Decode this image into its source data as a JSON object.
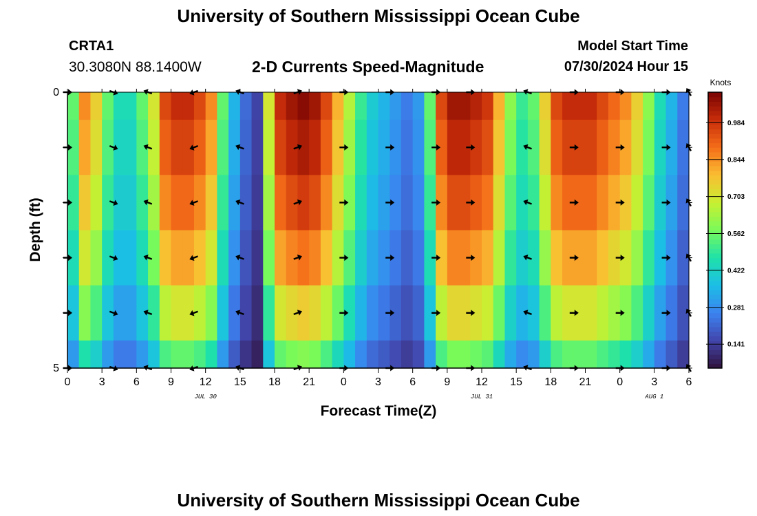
{
  "page": {
    "title_top": "University of Southern Mississippi Ocean Cube",
    "title_bottom": "University of Southern Mississippi Ocean Cube",
    "station": "CRTA1",
    "coords": "30.3080N  88.1400W",
    "subtitle": "2-D Currents Speed-Magnitude",
    "model_start_label": "Model Start Time",
    "model_start_value": "07/30/2024 Hour 15"
  },
  "chart_data": {
    "type": "heatmap",
    "title": "2-D Currents Speed-Magnitude",
    "xlabel": "Forecast Time(Z)",
    "ylabel": "Depth (ft)",
    "xlim": [
      0,
      54
    ],
    "ylim": [
      0,
      5
    ],
    "x_ticks": [
      0,
      3,
      6,
      9,
      12,
      15,
      18,
      21,
      24,
      27,
      30,
      33,
      36,
      39,
      42,
      45,
      48,
      51,
      54
    ],
    "x_tick_labels": [
      "0",
      "3",
      "6",
      "9",
      "12",
      "15",
      "18",
      "21",
      "0",
      "3",
      "6",
      "9",
      "12",
      "15",
      "18",
      "21",
      "0",
      "3",
      "6"
    ],
    "y_ticks": [
      0,
      1,
      2,
      3,
      4,
      5
    ],
    "y_tick_labels": [
      "0",
      "",
      "",
      "",
      "",
      "5"
    ],
    "date_labels": [
      {
        "hour": 12,
        "label": "JUL 30"
      },
      {
        "hour": 36,
        "label": "JUL 31"
      },
      {
        "hour": 51,
        "label": "AUG 1"
      }
    ],
    "colorbar": {
      "label": "Knots",
      "min": 0.05,
      "max": 1.1,
      "ticks": [
        0.141,
        0.281,
        0.422,
        0.562,
        0.703,
        0.844,
        0.984
      ],
      "tick_labels": [
        "0.141",
        "0.281",
        "0.422",
        "0.562",
        "0.703",
        "0.844",
        "0.984"
      ]
    },
    "depth_levels": [
      0,
      1,
      2,
      3,
      4,
      5
    ],
    "hours": [
      0,
      1,
      2,
      3,
      4,
      5,
      6,
      7,
      8,
      9,
      10,
      11,
      12,
      13,
      14,
      15,
      16,
      17,
      18,
      19,
      20,
      21,
      22,
      23,
      24,
      25,
      26,
      27,
      28,
      29,
      30,
      31,
      32,
      33,
      34,
      35,
      36,
      37,
      38,
      39,
      40,
      41,
      42,
      43,
      44,
      45,
      46,
      47,
      48,
      49,
      50,
      51,
      52,
      53,
      54
    ],
    "surface_speed": [
      0.55,
      0.85,
      0.75,
      0.55,
      0.45,
      0.45,
      0.55,
      0.7,
      0.95,
      1.0,
      1.0,
      0.95,
      0.85,
      0.55,
      0.35,
      0.22,
      0.15,
      0.7,
      1.0,
      1.05,
      1.08,
      1.05,
      0.95,
      0.8,
      0.65,
      0.5,
      0.4,
      0.35,
      0.3,
      0.25,
      0.3,
      0.55,
      0.95,
      1.05,
      1.05,
      1.02,
      0.98,
      0.8,
      0.6,
      0.5,
      0.55,
      0.75,
      0.95,
      1.0,
      1.0,
      1.0,
      0.95,
      0.9,
      0.85,
      0.75,
      0.6,
      0.45,
      0.35,
      0.25,
      0.3
    ],
    "depth_factor": [
      1.0,
      0.96,
      0.9,
      0.82,
      0.7,
      0.55
    ],
    "vectors": {
      "hours": [
        0,
        4,
        7,
        11,
        15,
        20,
        24,
        28,
        32,
        35,
        40,
        44,
        48,
        52,
        54
      ],
      "depths": [
        0,
        1,
        2,
        3,
        4,
        5
      ],
      "angle_deg": [
        0,
        20,
        200,
        160,
        200,
        -20,
        0,
        0,
        0,
        0,
        200,
        0,
        0,
        0,
        240
      ]
    }
  }
}
